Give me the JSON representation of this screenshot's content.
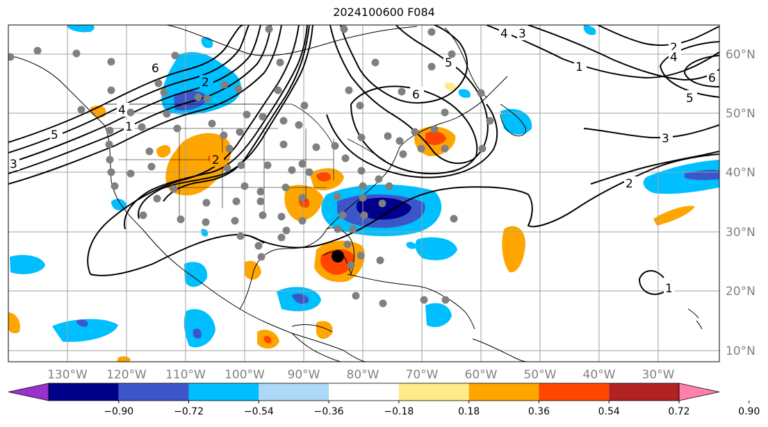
{
  "title": "2024100600 F084",
  "map": {
    "lon_labels": [
      "130°W",
      "120°W",
      "110°W",
      "100°W",
      "90°W",
      "80°W",
      "70°W",
      "60°W",
      "50°W",
      "40°W",
      "30°W"
    ],
    "lat_labels": [
      "60°N",
      "50°N",
      "40°N",
      "30°N",
      "20°N",
      "10°N"
    ],
    "contour_labels": [
      "6",
      "2",
      "4",
      "1",
      "5",
      "3",
      "2",
      "6",
      "5",
      "4",
      "3",
      "1",
      "2",
      "4",
      "5",
      "6",
      "3",
      "2",
      "1"
    ]
  },
  "colorbar": {
    "ticks": [
      "−0.90",
      "−0.72",
      "−0.54",
      "−0.36",
      "−0.18",
      "0.18",
      "0.36",
      "0.54",
      "0.72",
      "0.90"
    ],
    "colors": [
      "#9932cc",
      "#00008b",
      "#3a56c8",
      "#00bfff",
      "#add8f8",
      "#ffffff",
      "#ffeb8a",
      "#ffa500",
      "#ff4500",
      "#b22222",
      "#ff80ab"
    ]
  }
}
